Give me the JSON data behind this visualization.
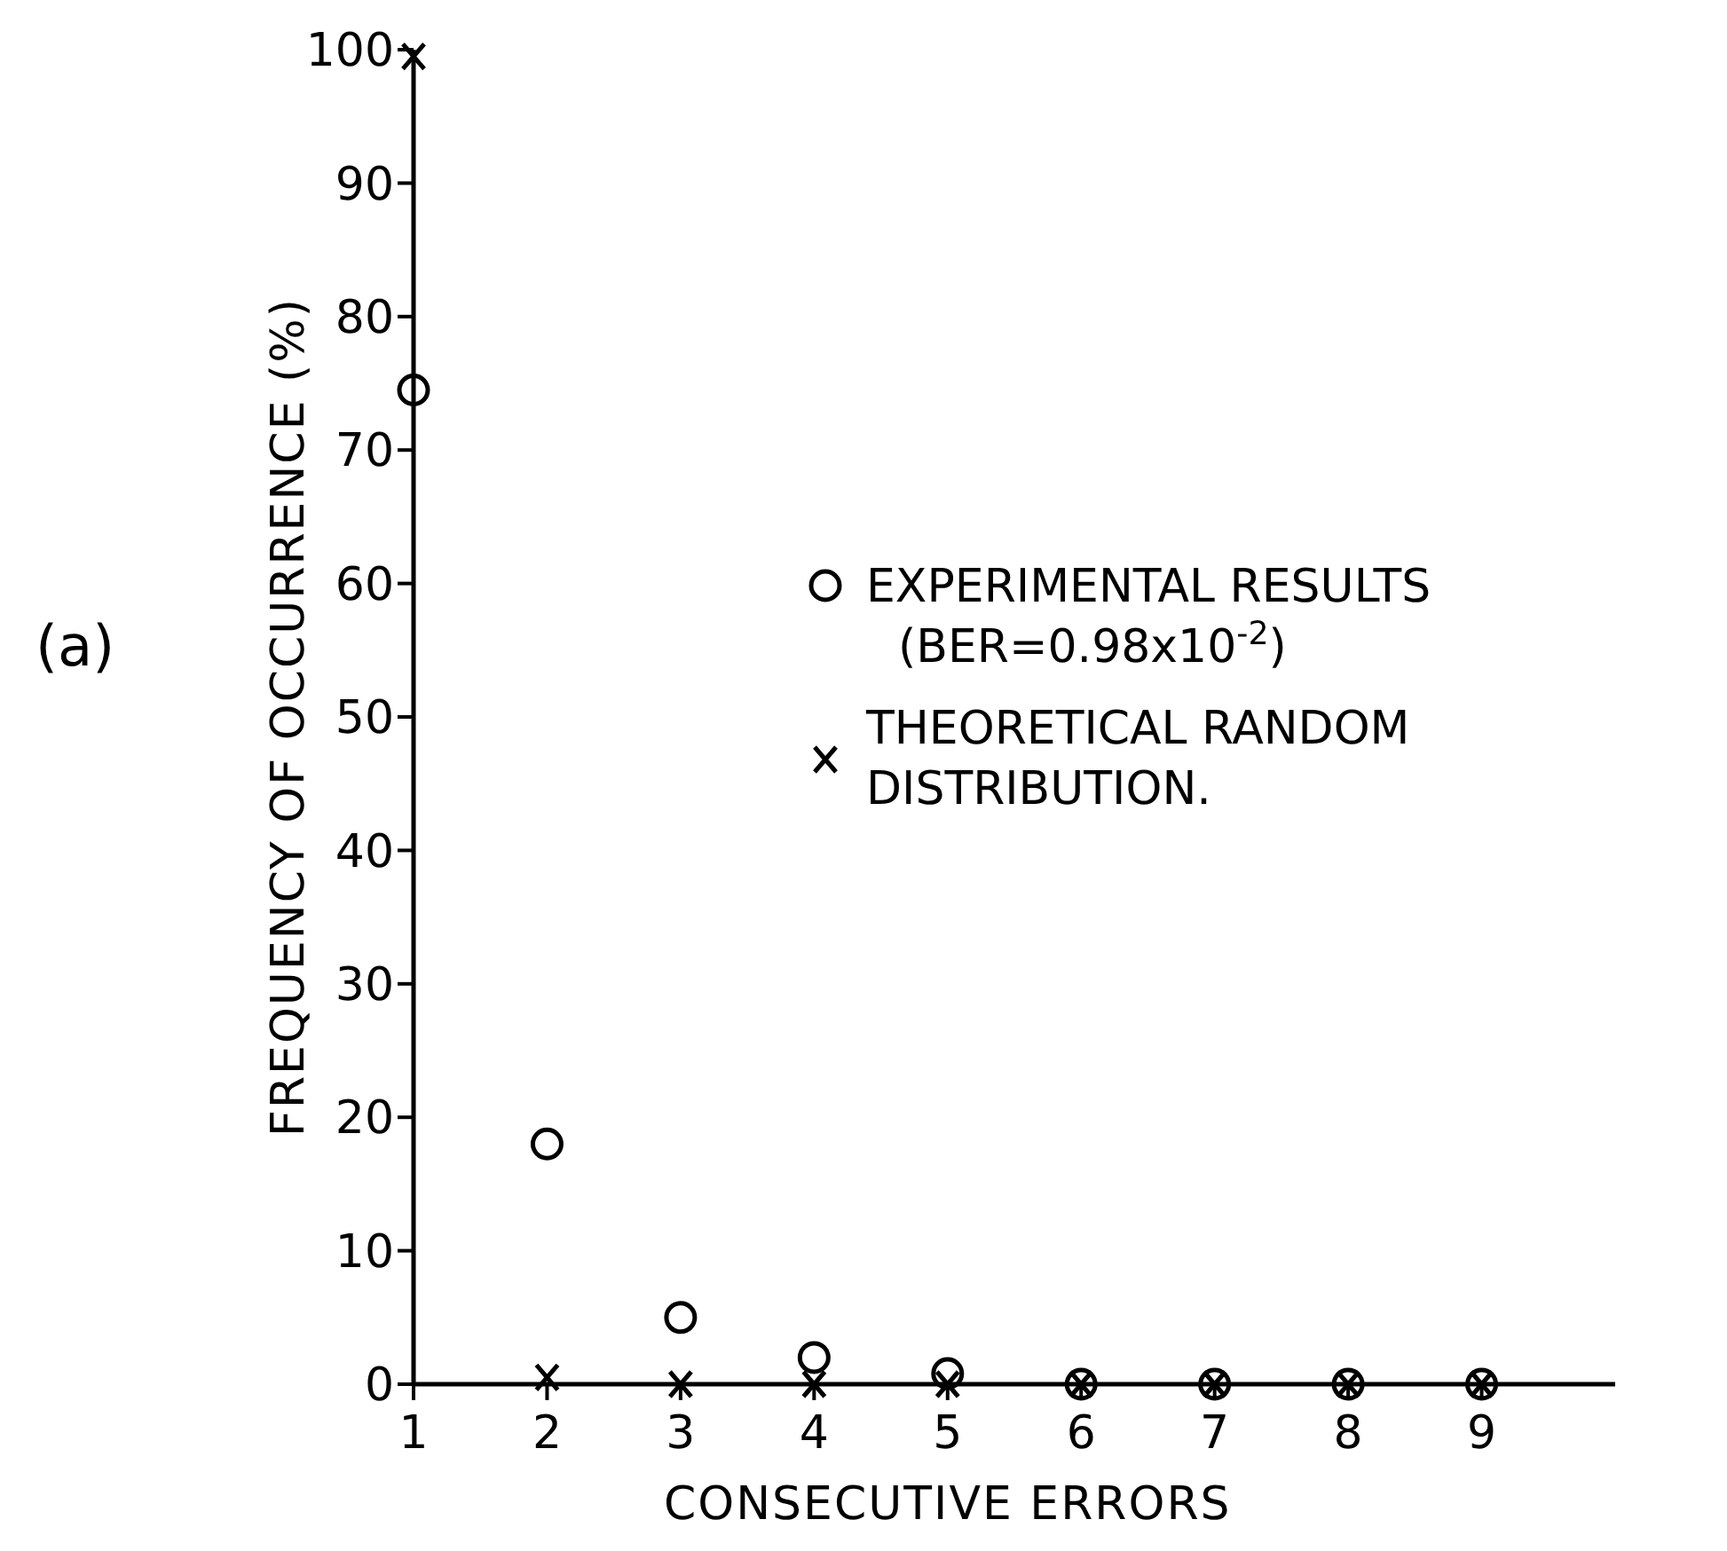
{
  "chart_data": {
    "type": "scatter",
    "xlabel": "CONSECUTIVE ERRORS",
    "ylabel": "FREQUENCY OF OCCURRENCE (%)",
    "annotations": [
      "(a)"
    ],
    "x": [
      1,
      2,
      3,
      4,
      5,
      6,
      7,
      8,
      9
    ],
    "series": [
      {
        "name": "EXPERIMENTAL RESULTS\n(BER=0.98x10$^{-2}$)",
        "color": "#000000",
        "marker": "circle",
        "values": [
          74.5,
          18,
          5,
          2,
          0.8,
          0,
          0,
          0,
          0
        ]
      },
      {
        "name": "THEORETICAL RANDOM\nDISTRIBUTION.",
        "color": "#000000",
        "marker": "cross",
        "values": [
          99.5,
          0.5,
          0,
          0,
          0,
          0,
          0,
          0,
          0
        ]
      }
    ],
    "xlim": [
      1,
      10
    ],
    "xticks": [
      1,
      2,
      3,
      4,
      5,
      6,
      7,
      8,
      9
    ],
    "ylim": [
      0,
      100
    ],
    "yticks": [
      0,
      10,
      20,
      30,
      40,
      50,
      60,
      70,
      80,
      90,
      100
    ],
    "grid": false,
    "legend": "right"
  }
}
